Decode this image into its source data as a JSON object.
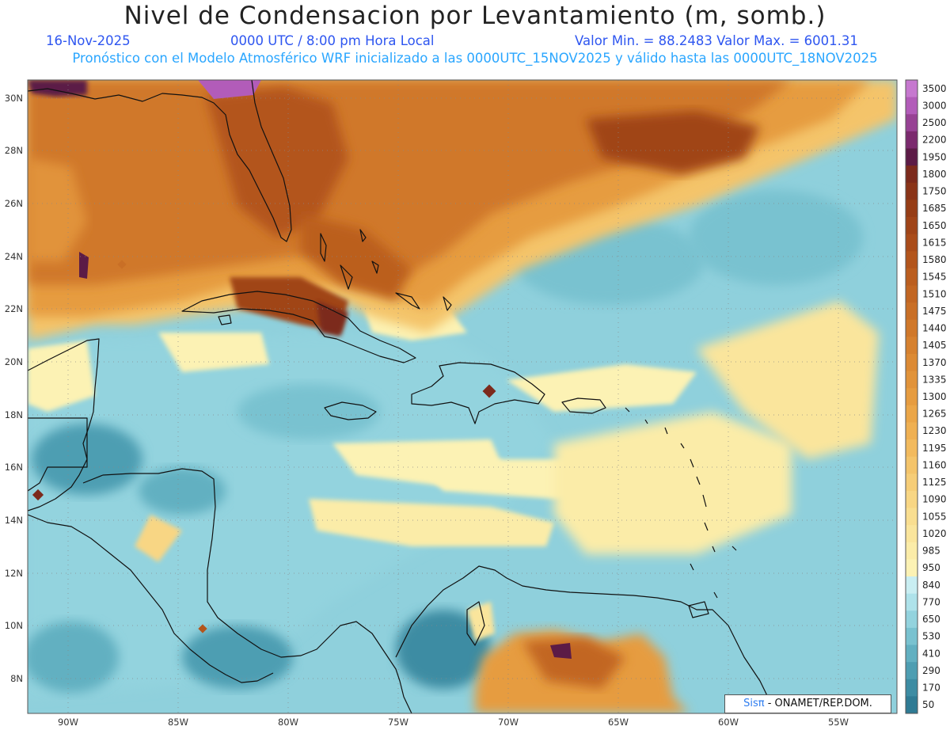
{
  "header": {
    "title": "Nivel de Condensacion por Levantamiento (m, somb.)",
    "date": "16-Nov-2025",
    "time": "0000 UTC / 8:00 pm Hora Local",
    "minmax": "Valor Min. = 88.2483  Valor Max. = 6001.31",
    "model_line": "Pronóstico con el Modelo Atmosférico WRF inicializado a las 0000UTC_15NOV2025 y válido hasta las  0000UTC_18NOV2025"
  },
  "map": {
    "lon_labels": [
      "90W",
      "85W",
      "80W",
      "75W",
      "70W",
      "65W",
      "60W",
      "55W"
    ],
    "lat_labels": [
      "30N",
      "28N",
      "26N",
      "24N",
      "22N",
      "20N",
      "18N",
      "16N",
      "14N",
      "12N",
      "10N",
      "8N"
    ],
    "regions": [
      "Florida",
      "Bahamas",
      "Cuba",
      "Hispaniola",
      "Jamaica",
      "Puerto Rico",
      "Yucatán",
      "Central America",
      "Colombia",
      "Venezuela",
      "Lesser Antilles"
    ]
  },
  "colorbar": {
    "labels": [
      "3500",
      "3000",
      "2500",
      "2200",
      "1950",
      "1800",
      "1750",
      "1685",
      "1650",
      "1615",
      "1580",
      "1545",
      "1510",
      "1475",
      "1440",
      "1405",
      "1370",
      "1335",
      "1300",
      "1265",
      "1230",
      "1195",
      "1160",
      "1125",
      "1090",
      "1055",
      "1020",
      "985",
      "950",
      "840",
      "770",
      "650",
      "530",
      "410",
      "290",
      "170",
      "50"
    ],
    "colors": [
      "#c678cf",
      "#b25cb9",
      "#974294",
      "#7b2a6e",
      "#5c1b46",
      "#7c2a1c",
      "#8a3418",
      "#963d16",
      "#a04418",
      "#aa4c1a",
      "#b3551c",
      "#bb5e1f",
      "#c26622",
      "#c96f26",
      "#d0782a",
      "#d6812f",
      "#dc8a34",
      "#e1933a",
      "#e69c40",
      "#eba648",
      "#efb052",
      "#f2ba5e",
      "#f4c46a",
      "#f6cd77",
      "#f8d684",
      "#f9de90",
      "#fae59c",
      "#fbeca8",
      "#fcf2b4",
      "#c9eef2",
      "#aee2ea",
      "#93d3de",
      "#79c2d0",
      "#62b0c1",
      "#4e9eb2",
      "#3d8ca3",
      "#2f7b94"
    ]
  },
  "credit": {
    "brand": "Sisπ",
    "text": " - ONAMET/REP.DOM."
  }
}
